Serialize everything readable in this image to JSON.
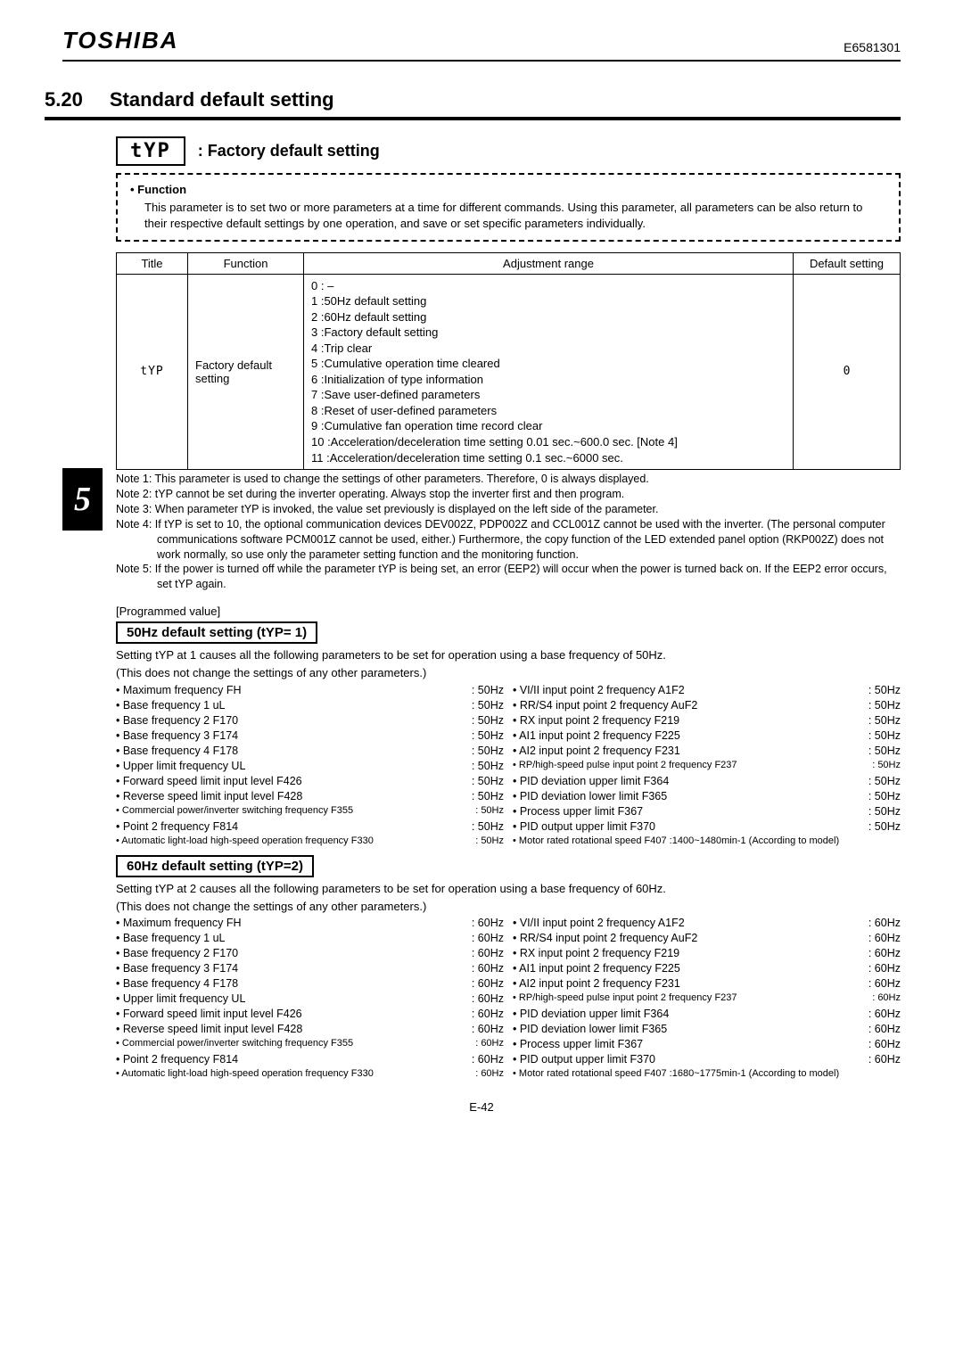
{
  "header": {
    "brand": "TOSHIBA",
    "doc_number": "E6581301"
  },
  "chapter_tab": "5",
  "section": {
    "number": "5.20",
    "title": "Standard default setting"
  },
  "param_header": {
    "code": "tYP",
    "label": ": Factory default setting"
  },
  "function_box": {
    "title": "• Function",
    "body": "This parameter is to set two or more parameters at a time for different commands. Using this parameter, all parameters can be also return to their respective default settings by one operation, and save or set specific parameters individually."
  },
  "table": {
    "headers": [
      "Title",
      "Function",
      "Adjustment range",
      "Default setting"
    ],
    "row": {
      "title": "tYP",
      "function": "Factory default setting",
      "adjustment": [
        "0 : –",
        "1 :50Hz default setting",
        "2 :60Hz default setting",
        "3 :Factory default setting",
        "4 :Trip clear",
        "5 :Cumulative operation time cleared",
        "6 :Initialization of type information",
        "7 :Save user-defined parameters",
        "8 :Reset of user-defined parameters",
        "9 :Cumulative fan operation time record clear",
        "10 :Acceleration/deceleration time setting 0.01 sec.~600.0 sec. [Note 4]",
        "11 :Acceleration/deceleration time setting 0.1 sec.~6000 sec."
      ],
      "default": "0"
    }
  },
  "notes": [
    "Note 1: This parameter is used to change the settings of other parameters. Therefore, 0 is always displayed.",
    "Note 2: tYP cannot be set during the inverter operating. Always stop the inverter first and then program.",
    "Note 3: When parameter tYP is invoked, the value set previously is displayed on the left side of the parameter.",
    "Note 4: If tYP is set to 10, the optional communication devices DEV002Z, PDP002Z and CCL001Z cannot be used with the inverter. (The personal computer communications software PCM001Z cannot be used, either.) Furthermore, the copy function of the LED extended panel option (RKP002Z) does not work normally, so use only the parameter setting function and the monitoring function.",
    "Note 5: If the power is turned off while the parameter tYP is being set, an error (EEP2) will occur when the power is turned back on. If the EEP2 error occurs, set tYP again."
  ],
  "programmed_value_label": "[Programmed value]",
  "block50": {
    "heading": "50Hz default setting (tYP= 1)",
    "note1": "Setting tYP at 1 causes all the following parameters to be set for operation using a base frequency of 50Hz.",
    "note2": "(This does not change the settings of any other parameters.)",
    "left": [
      {
        "l": "• Maximum frequency FH",
        "v": ": 50Hz"
      },
      {
        "l": "• Base frequency 1 uL",
        "v": ": 50Hz"
      },
      {
        "l": "• Base frequency 2 F170",
        "v": ": 50Hz"
      },
      {
        "l": "• Base frequency 3 F174",
        "v": ": 50Hz"
      },
      {
        "l": "• Base frequency 4 F178",
        "v": ": 50Hz"
      },
      {
        "l": "• Upper limit frequency UL",
        "v": ": 50Hz"
      },
      {
        "l": "• Forward speed limit input level F426",
        "v": ": 50Hz"
      },
      {
        "l": "• Reverse speed limit input level F428",
        "v": ": 50Hz"
      },
      {
        "l": "• Commercial power/inverter switching frequency F355",
        "v": ": 50Hz",
        "sm": true
      },
      {
        "l": "• Point 2 frequency F814",
        "v": ": 50Hz"
      },
      {
        "l": "• Automatic light-load high-speed operation frequency F330",
        "v": ": 50Hz",
        "sm": true
      }
    ],
    "right": [
      {
        "l": "• VI/II input point 2 frequency A1F2",
        "v": ": 50Hz"
      },
      {
        "l": "• RR/S4 input point 2 frequency AuF2",
        "v": ": 50Hz"
      },
      {
        "l": "• RX input point 2 frequency F219",
        "v": ": 50Hz"
      },
      {
        "l": "• AI1 input point 2 frequency F225",
        "v": ": 50Hz"
      },
      {
        "l": "• AI2 input point 2 frequency F231",
        "v": ": 50Hz"
      },
      {
        "l": "• RP/high-speed pulse input point 2 frequency F237",
        "v": ": 50Hz",
        "sm": true
      },
      {
        "l": "• PID deviation upper limit F364",
        "v": ": 50Hz"
      },
      {
        "l": "• PID deviation lower limit F365",
        "v": ": 50Hz"
      },
      {
        "l": "• Process upper limit F367",
        "v": ": 50Hz"
      },
      {
        "l": "• PID output upper limit F370",
        "v": ": 50Hz"
      },
      {
        "l": "• Motor rated rotational speed F407   :1400~1480min-1 (According to model)",
        "v": "",
        "sm": true
      }
    ]
  },
  "block60": {
    "heading": "60Hz default setting (tYP=2)",
    "note1": "Setting tYP at 2 causes all the following parameters to be set for operation using a base frequency of 60Hz.",
    "note2": "(This does not change the settings of any other parameters.)",
    "left": [
      {
        "l": "• Maximum frequency FH",
        "v": ": 60Hz"
      },
      {
        "l": "• Base frequency 1 uL",
        "v": ": 60Hz"
      },
      {
        "l": "• Base frequency 2 F170",
        "v": ": 60Hz"
      },
      {
        "l": "• Base frequency 3 F174",
        "v": ": 60Hz"
      },
      {
        "l": "• Base frequency 4 F178",
        "v": ": 60Hz"
      },
      {
        "l": "• Upper limit frequency UL",
        "v": ": 60Hz"
      },
      {
        "l": "• Forward speed limit input level F426",
        "v": ": 60Hz"
      },
      {
        "l": "• Reverse speed limit input level F428",
        "v": ": 60Hz"
      },
      {
        "l": "• Commercial power/inverter switching frequency F355",
        "v": ": 60Hz",
        "sm": true
      },
      {
        "l": "• Point 2 frequency F814",
        "v": ": 60Hz"
      },
      {
        "l": "• Automatic light-load high-speed operation frequency F330",
        "v": ": 60Hz",
        "sm": true
      }
    ],
    "right": [
      {
        "l": "• VI/II input point 2 frequency A1F2",
        "v": ": 60Hz"
      },
      {
        "l": "• RR/S4 input point 2 frequency AuF2",
        "v": ": 60Hz"
      },
      {
        "l": "• RX input point 2 frequency F219",
        "v": ": 60Hz"
      },
      {
        "l": "• AI1 input point 2 frequency F225",
        "v": ": 60Hz"
      },
      {
        "l": "• AI2 input point 2 frequency F231",
        "v": ": 60Hz"
      },
      {
        "l": "• RP/high-speed pulse input point 2 frequency F237",
        "v": ": 60Hz",
        "sm": true
      },
      {
        "l": "• PID deviation upper limit F364",
        "v": ": 60Hz"
      },
      {
        "l": "• PID deviation lower limit F365",
        "v": ": 60Hz"
      },
      {
        "l": "• Process upper limit F367",
        "v": ": 60Hz"
      },
      {
        "l": "• PID output upper limit F370",
        "v": ": 60Hz"
      },
      {
        "l": "• Motor rated rotational speed F407   :1680~1775min-1 (According to model)",
        "v": "",
        "sm": true
      }
    ]
  },
  "page_number": "E-42"
}
